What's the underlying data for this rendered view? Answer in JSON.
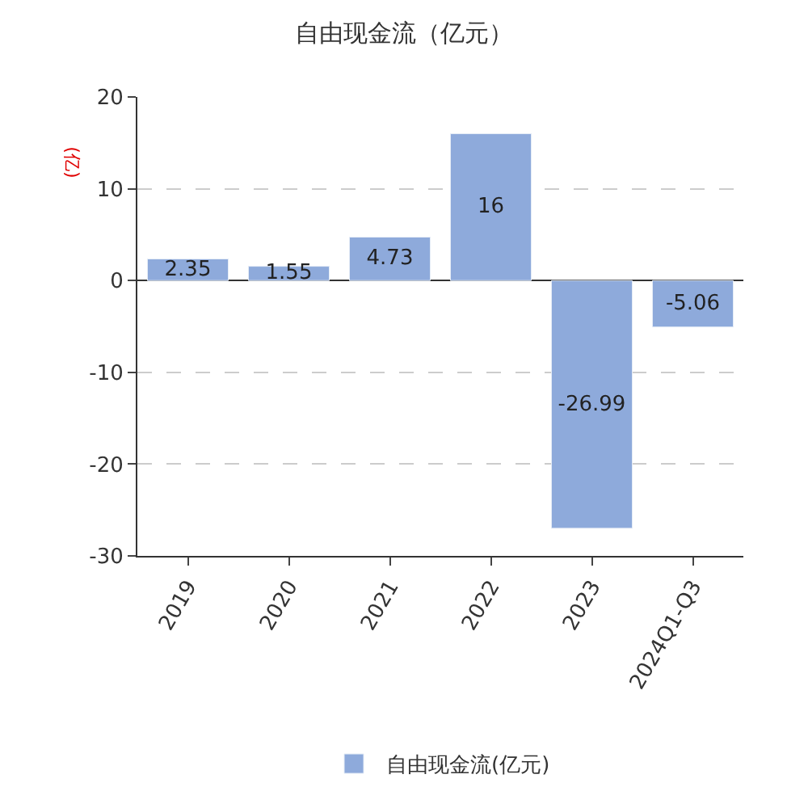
{
  "chart_data": {
    "type": "bar",
    "title": "自由现金流（亿元）",
    "ylabel": "(亿)",
    "categories": [
      "2019",
      "2020",
      "2021",
      "2022",
      "2023",
      "2024Q1-Q3"
    ],
    "series": [
      {
        "name": "自由现金流(亿元)",
        "color": "#8eaadb",
        "values": [
          2.35,
          1.55,
          4.73,
          16,
          -26.99,
          -5.06
        ]
      }
    ],
    "ylim": [
      -30,
      20
    ],
    "yticks": [
      -30,
      -20,
      -10,
      0,
      10,
      20
    ],
    "grid": "y",
    "legend": "bottom",
    "data_labels": true
  }
}
